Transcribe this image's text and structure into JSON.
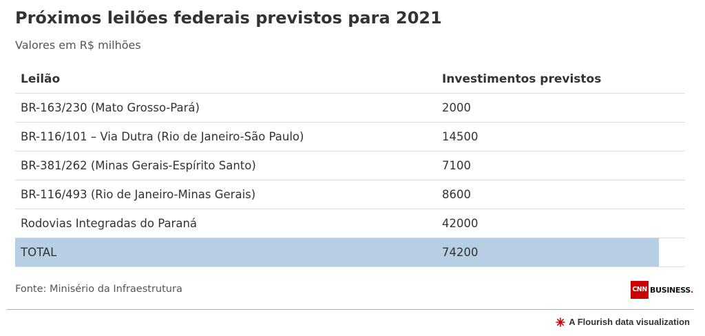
{
  "title": "Próximos leilões federais previstos para 2021",
  "subtitle": "Valores em R$ milhões",
  "chart_data": {
    "type": "table",
    "columns": [
      "Leilão",
      "Investimentos previstos"
    ],
    "rows": [
      {
        "leilao": "BR-163/230 (Mato Grosso-Pará)",
        "valor": "2000"
      },
      {
        "leilao": "BR-116/101 – Via Dutra (Rio de Janeiro-São Paulo)",
        "valor": "14500"
      },
      {
        "leilao": "BR-381/262 (Minas Gerais-Espírito Santo)",
        "valor": "7100"
      },
      {
        "leilao": "BR-116/493 (Rio de Janeiro-Minas Gerais)",
        "valor": "8600"
      },
      {
        "leilao": "Rodovias Integradas do Paraná",
        "valor": "42000"
      }
    ],
    "total": {
      "leilao": "TOTAL",
      "valor": "74200"
    },
    "highlight_color": "#b6cfe4"
  },
  "source": "Fonte: Minisério da Infraestrutura",
  "logo": {
    "cnn": "CNN",
    "business": "BUSINESS",
    "brand_color": "#cc0000"
  },
  "credit": "A Flourish data visualization"
}
